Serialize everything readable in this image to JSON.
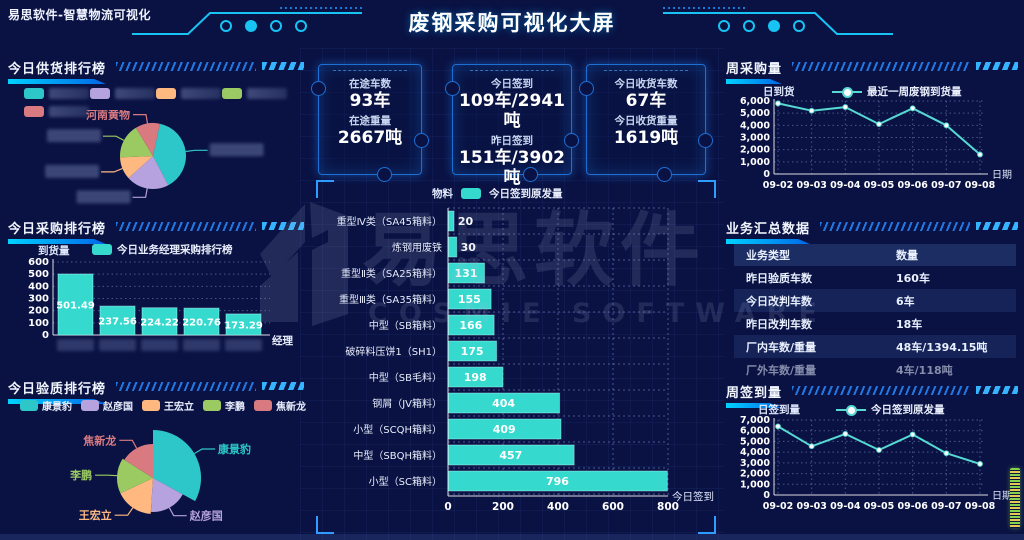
{
  "header": {
    "brand": "易思软件-智慧物流可视化",
    "title": "废钢采购可视化大屏"
  },
  "stats": [
    {
      "label1": "在途车数",
      "value1": "93车",
      "label2": "在途重量",
      "value2": "2667吨"
    },
    {
      "label1": "今日签到",
      "value1": "109车/2941吨",
      "label2": "昨日签到",
      "value2": "151车/3902吨"
    },
    {
      "label1": "今日收货车数",
      "value1": "67车",
      "label2": "今日收货重量",
      "value2": "1619吨"
    }
  ],
  "panels": {
    "supply": {
      "title": "今日供货排行榜"
    },
    "purchase": {
      "title": "今日采购排行榜"
    },
    "quality": {
      "title": "今日验质排行榜"
    },
    "weekly_purchase": {
      "title": "周采购量"
    },
    "summary": {
      "title": "业务汇总数据",
      "columns": [
        "业务类型",
        "数量"
      ],
      "rows": [
        [
          "昨日验质车数",
          "160车"
        ],
        [
          "今日改判车数",
          "6车"
        ],
        [
          "昨日改判车数",
          "18车"
        ],
        [
          "厂内车数/重量",
          "48车/1394.15吨"
        ],
        [
          "厂外车数/重量",
          "4车/118吨"
        ]
      ]
    },
    "weekly_signin": {
      "title": "周签到量"
    }
  },
  "watermark": {
    "cn": "易思软件",
    "en": "COSMIE SOFTWARE"
  },
  "colors": {
    "accent_blue": "#0d8bff",
    "teal": "#36d9ce",
    "line": "#56d9d3",
    "palette": [
      "#2ec7c9",
      "#b6a2de",
      "#ffb980",
      "#9bca63",
      "#d87a80"
    ]
  },
  "chart_data": [
    {
      "id": "supply_pie",
      "type": "pie",
      "title": "今日供货排行榜",
      "note": "supplier names blurred in source image",
      "start_deg": -78,
      "slices": [
        {
          "label": "",
          "redacted": true,
          "value": 39,
          "color": "#2ec7c9"
        },
        {
          "label": "",
          "redacted": true,
          "value": 21,
          "color": "#b6a2de"
        },
        {
          "label": "",
          "redacted": true,
          "value": 11,
          "color": "#ffb980"
        },
        {
          "label": "",
          "redacted": true,
          "value": 17,
          "color": "#9bca63"
        },
        {
          "label": "河南黄物",
          "redacted": false,
          "value": 12,
          "color": "#d87a80"
        }
      ]
    },
    {
      "id": "purchase_bar",
      "type": "bar",
      "title": "今日业务经理采购排行榜",
      "ylabel": "到货量",
      "xlabel": "经理",
      "ylim": [
        0,
        600
      ],
      "ystep": 100,
      "categories_redacted": true,
      "values": [
        501.49,
        237.56,
        224.22,
        220.76,
        173.29
      ],
      "bar_color": "#36d9ce"
    },
    {
      "id": "quality_rose",
      "type": "pie",
      "subtype": "rose",
      "title": "今日验质排行榜",
      "start_deg": -90,
      "slices": [
        {
          "label": "康景豹",
          "value": 33,
          "color": "#2ec7c9"
        },
        {
          "label": "赵彦国",
          "value": 18,
          "color": "#b6a2de"
        },
        {
          "label": "王宏立",
          "value": 17,
          "color": "#ffb980"
        },
        {
          "label": "李鹏",
          "value": 16,
          "color": "#9bca63"
        },
        {
          "label": "焦新龙",
          "value": 16,
          "color": "#d87a80"
        }
      ]
    },
    {
      "id": "material_hbar",
      "type": "bar",
      "orientation": "horizontal",
      "legend": "今日签到原发量",
      "yname": "物料",
      "xname": "今日签到",
      "xlim": [
        0,
        800
      ],
      "xticks": [
        0,
        200,
        400,
        600,
        800
      ],
      "categories": [
        "重型Ⅳ类（SA45箱料）",
        "炼钢用废铁",
        "重型Ⅱ类（SA25箱料）",
        "重型Ⅲ类（SA35箱料）",
        "中型（SB箱料）",
        "破碎料压饼1（SH1）",
        "中型（SB毛料）",
        "钢屑（JV箱料）",
        "小型（SCQH箱料）",
        "中型（SBQH箱料）",
        "小型（SC箱料）"
      ],
      "values": [
        20,
        30,
        131,
        155,
        166,
        175,
        198,
        404,
        409,
        457,
        796
      ],
      "bar_color": "#36d9ce"
    },
    {
      "id": "week_purchase_line",
      "type": "line",
      "legend": "最近一周废钢到货量",
      "yname": "日到货",
      "xname": "日期",
      "ylim": [
        0,
        6000
      ],
      "ystep": 1000,
      "x": [
        "09-02",
        "09-03",
        "09-04",
        "09-05",
        "09-06",
        "09-07",
        "09-08"
      ],
      "y": [
        5800,
        5200,
        5500,
        4100,
        5400,
        4000,
        1600
      ],
      "line_color": "#56d9d3"
    },
    {
      "id": "week_signin_line",
      "type": "line",
      "legend": "今日签到原发量",
      "yname": "日签到量",
      "xname": "日期",
      "ylim": [
        0,
        7000
      ],
      "ystep": 1000,
      "x": [
        "09-02",
        "09-03",
        "09-04",
        "09-05",
        "09-06",
        "09-07",
        "09-08"
      ],
      "y": [
        6400,
        4550,
        5700,
        4200,
        5650,
        3900,
        2900
      ],
      "line_color": "#56d9d3"
    }
  ]
}
